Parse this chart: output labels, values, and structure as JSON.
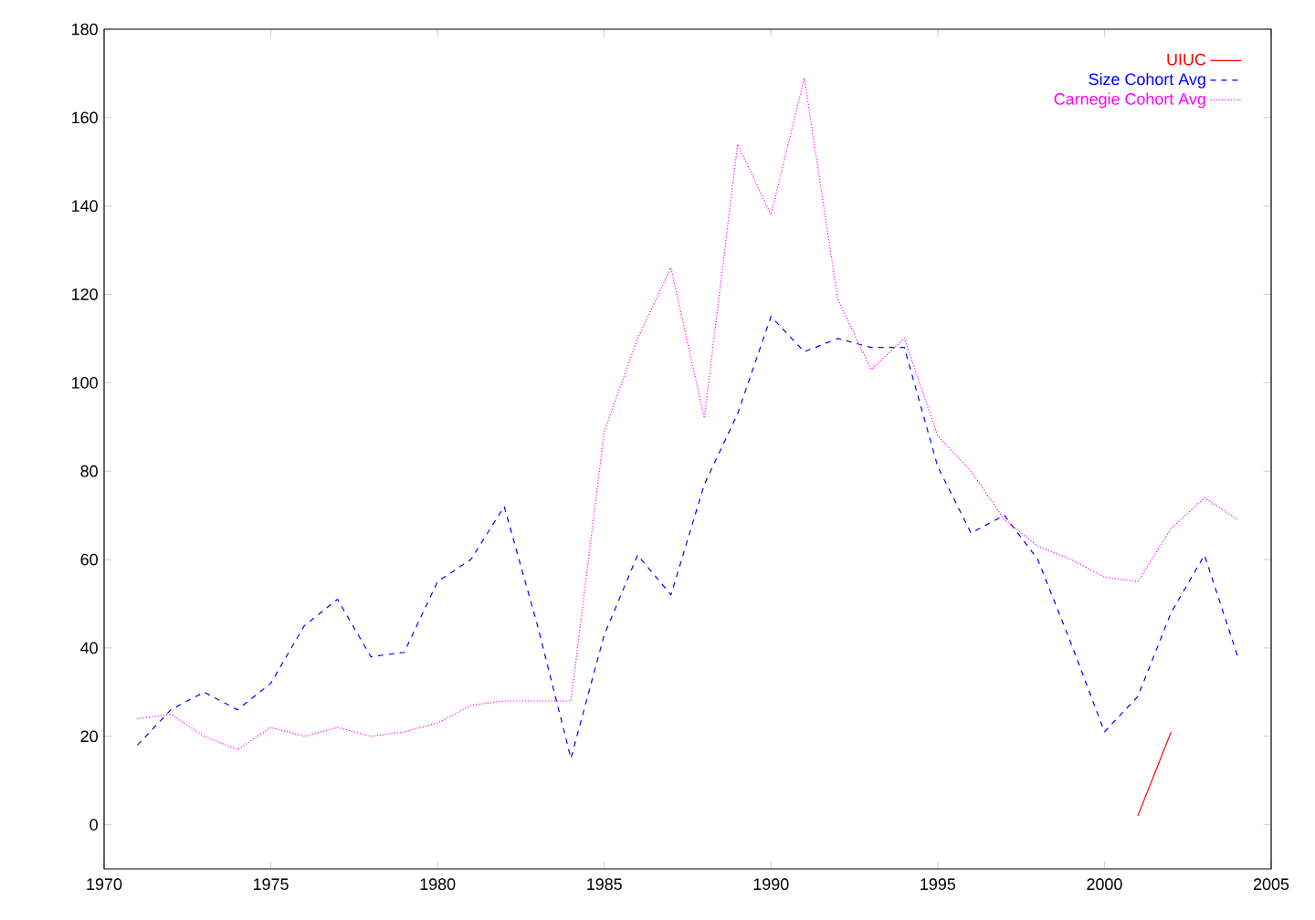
{
  "chart_data": {
    "type": "line",
    "x": [
      1971,
      1972,
      1973,
      1974,
      1975,
      1976,
      1977,
      1978,
      1979,
      1980,
      1981,
      1982,
      1983,
      1984,
      1985,
      1986,
      1987,
      1988,
      1989,
      1990,
      1991,
      1992,
      1993,
      1994,
      1995,
      1996,
      1997,
      1998,
      1999,
      2000,
      2001,
      2002,
      2003,
      2004
    ],
    "series": [
      {
        "name": "UIUC",
        "color": "#ff0000",
        "line_style": "solid",
        "values": [
          null,
          null,
          null,
          null,
          null,
          null,
          null,
          null,
          null,
          null,
          null,
          null,
          null,
          null,
          null,
          null,
          null,
          null,
          null,
          null,
          null,
          null,
          null,
          null,
          null,
          null,
          null,
          null,
          null,
          null,
          2,
          21,
          null,
          null
        ]
      },
      {
        "name": "Size Cohort Avg",
        "color": "#0000ff",
        "line_style": "dashed",
        "values": [
          18,
          26,
          30,
          26,
          32,
          45,
          51,
          38,
          39,
          55,
          60,
          72,
          45,
          15,
          43,
          61,
          52,
          77,
          93,
          115,
          107,
          110,
          108,
          108,
          81,
          66,
          70,
          60,
          41,
          21,
          29,
          48,
          61,
          38
        ]
      },
      {
        "name": "Carnegie Cohort Avg",
        "color": "#ff00ff",
        "line_style": "dotted",
        "values": [
          24,
          25,
          20,
          17,
          22,
          20,
          22,
          20,
          21,
          23,
          27,
          28,
          28,
          28,
          89,
          110,
          126,
          92,
          154,
          138,
          169,
          119,
          103,
          110,
          88,
          80,
          69,
          63,
          60,
          56,
          55,
          67,
          74,
          69
        ]
      }
    ],
    "xlim": [
      1970,
      2005
    ],
    "ylim": [
      -10,
      180
    ],
    "xticks": [
      1970,
      1975,
      1980,
      1985,
      1990,
      1995,
      2000,
      2005
    ],
    "yticks": [
      0,
      20,
      40,
      60,
      80,
      100,
      120,
      140,
      160,
      180
    ],
    "grid": false,
    "legend": "top right"
  }
}
